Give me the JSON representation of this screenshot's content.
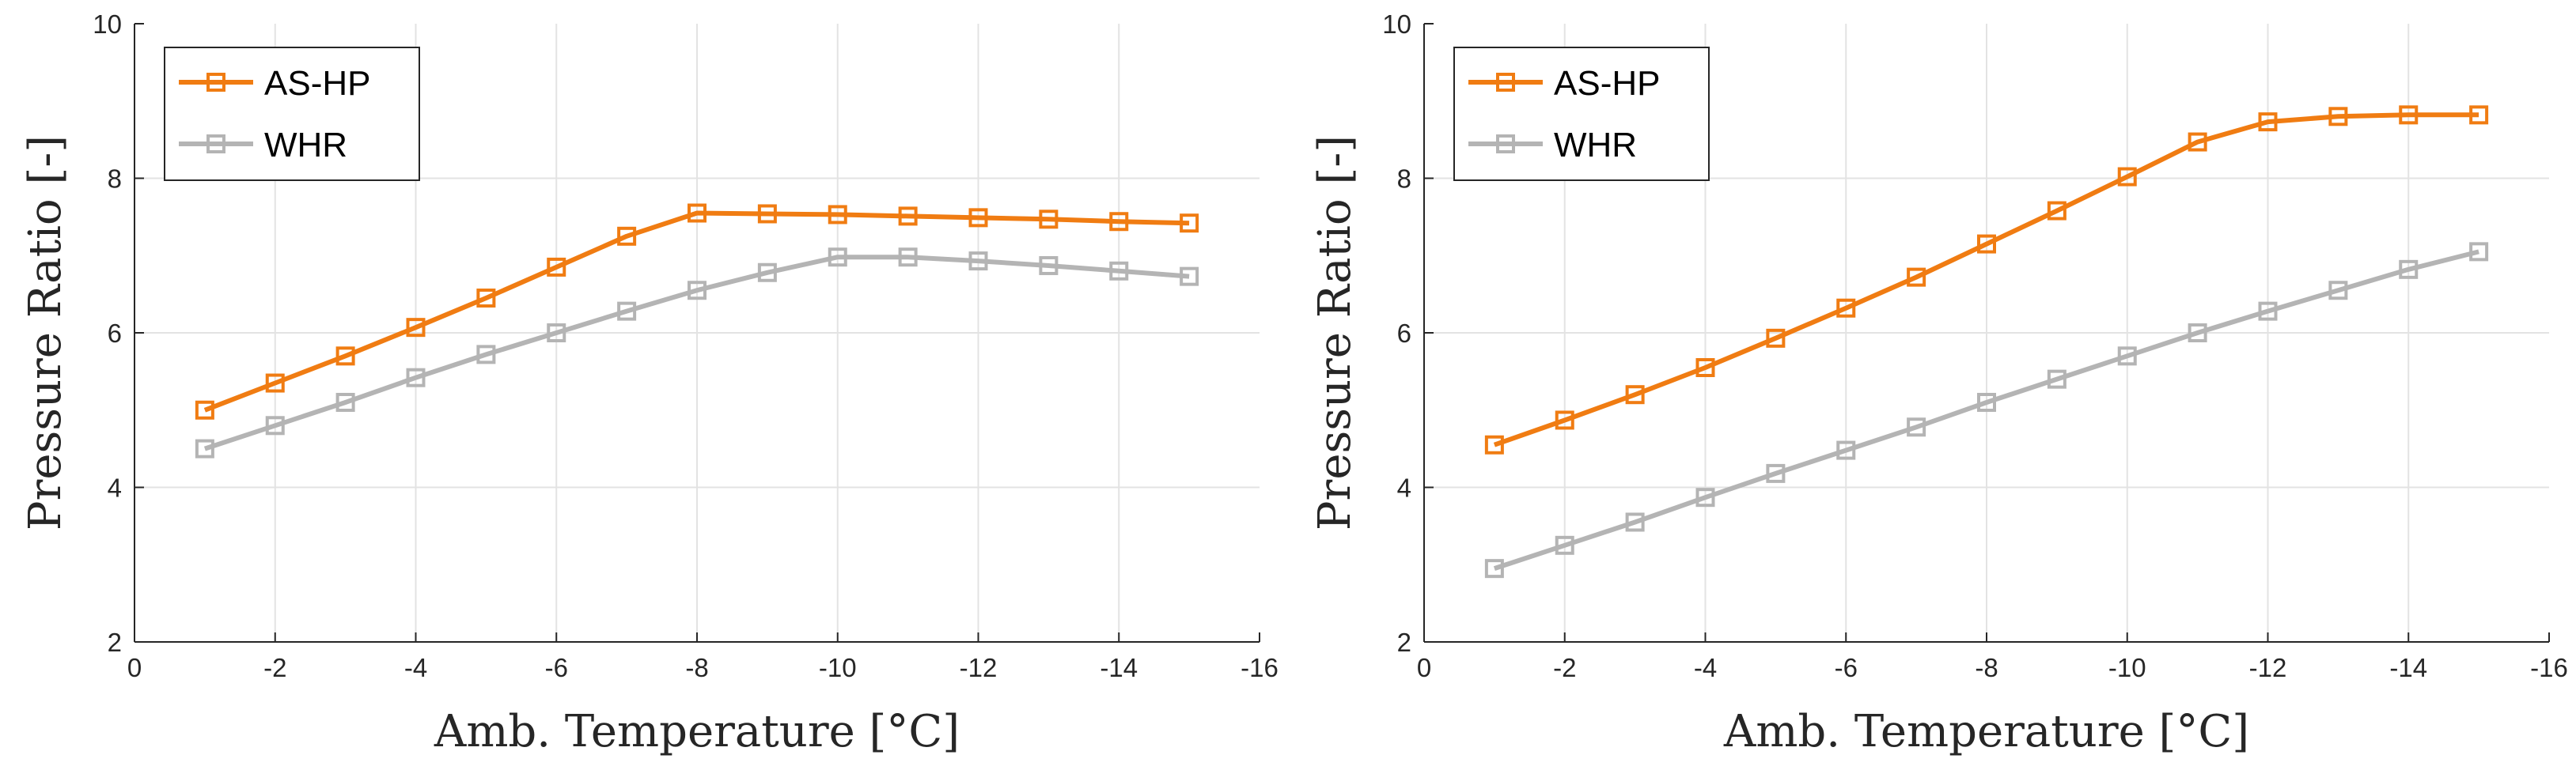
{
  "chart_data": [
    {
      "type": "line",
      "title": "",
      "xlabel": "Amb. Temperature [°C]",
      "ylabel": "Pressure Ratio [-]",
      "xlim": [
        0,
        -16
      ],
      "ylim": [
        2,
        10
      ],
      "xticks": [
        0,
        -2,
        -4,
        -6,
        -8,
        -10,
        -12,
        -14,
        -16
      ],
      "yticks": [
        2,
        4,
        6,
        8,
        10
      ],
      "grid": true,
      "legend_location": "top-left",
      "x": [
        -1,
        -2,
        -3,
        -4,
        -5,
        -6,
        -7,
        -8,
        -9,
        -10,
        -11,
        -12,
        -13,
        -14,
        -15
      ],
      "series": [
        {
          "name": "AS-HP",
          "color": "#F07C12",
          "marker": "square",
          "values": [
            5.0,
            5.35,
            5.7,
            6.07,
            6.45,
            6.85,
            7.25,
            7.55,
            7.54,
            7.53,
            7.51,
            7.49,
            7.47,
            7.44,
            7.42
          ]
        },
        {
          "name": "WHR",
          "color": "#B4B4B4",
          "marker": "square",
          "values": [
            4.5,
            4.8,
            5.1,
            5.42,
            5.72,
            6.0,
            6.28,
            6.55,
            6.78,
            6.98,
            6.98,
            6.93,
            6.87,
            6.8,
            6.73
          ]
        }
      ]
    },
    {
      "type": "line",
      "title": "",
      "xlabel": "Amb. Temperature [°C]",
      "ylabel": "Pressure Ratio [-]",
      "xlim": [
        0,
        -16
      ],
      "ylim": [
        2,
        10
      ],
      "xticks": [
        0,
        -2,
        -4,
        -6,
        -8,
        -10,
        -12,
        -14,
        -16
      ],
      "yticks": [
        2,
        4,
        6,
        8,
        10
      ],
      "grid": true,
      "legend_location": "top-left",
      "x": [
        -1,
        -2,
        -3,
        -4,
        -5,
        -6,
        -7,
        -8,
        -9,
        -10,
        -11,
        -12,
        -13,
        -14,
        -15
      ],
      "series": [
        {
          "name": "AS-HP",
          "color": "#F07C12",
          "marker": "square",
          "values": [
            4.55,
            4.87,
            5.2,
            5.55,
            5.93,
            6.32,
            6.72,
            7.15,
            7.58,
            8.02,
            8.47,
            8.73,
            8.8,
            8.82,
            8.82
          ]
        },
        {
          "name": "WHR",
          "color": "#B4B4B4",
          "marker": "square",
          "values": [
            2.95,
            3.25,
            3.55,
            3.87,
            4.18,
            4.48,
            4.78,
            5.1,
            5.4,
            5.7,
            6.0,
            6.28,
            6.55,
            6.82,
            7.05
          ]
        }
      ]
    }
  ]
}
